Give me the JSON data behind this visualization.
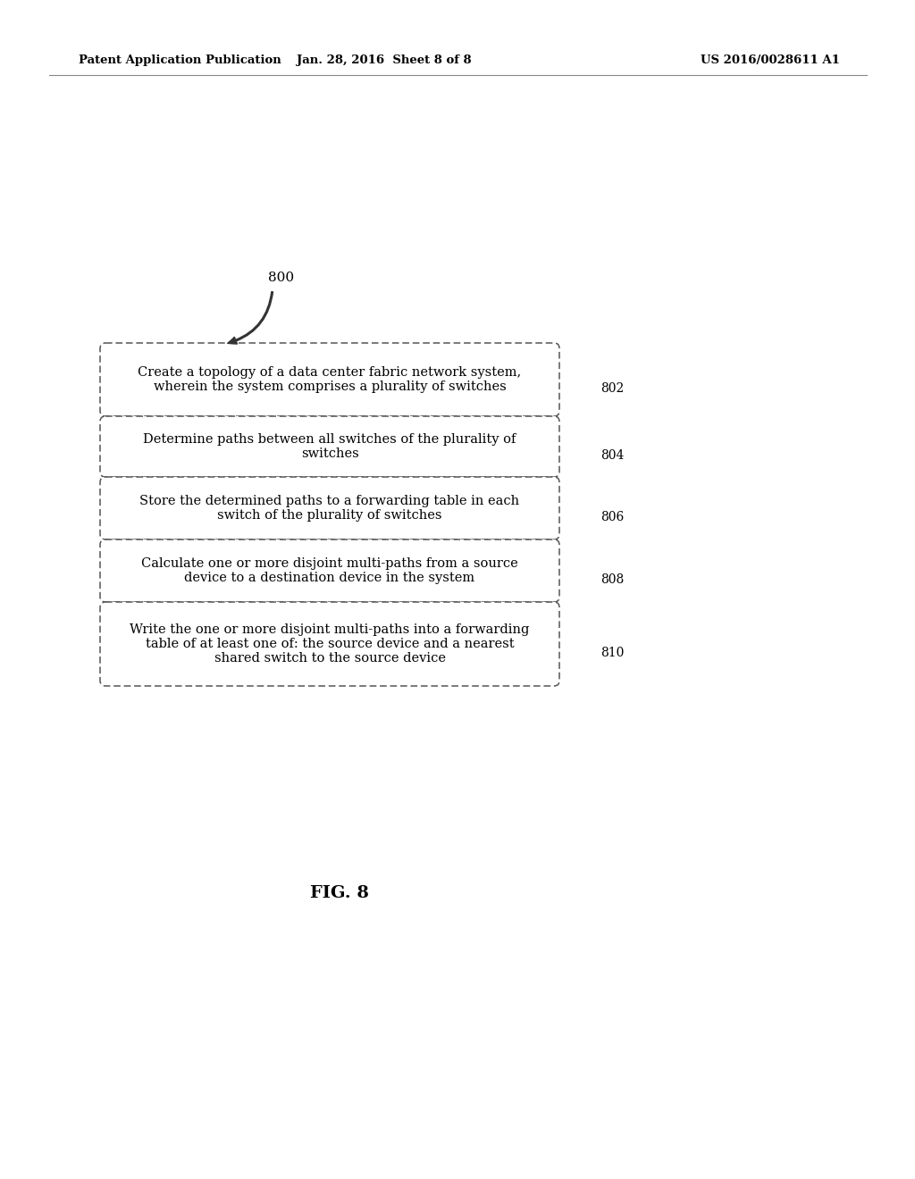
{
  "bg_color": "#ffffff",
  "header_left": "Patent Application Publication",
  "header_mid": "Jan. 28, 2016  Sheet 8 of 8",
  "header_right": "US 2016/0028611 A1",
  "fig_label": "FIG. 8",
  "diagram_label": "800",
  "boxes": [
    {
      "label": "Create a topology of a data center fabric network system,\nwherein the system comprises a plurality of switches",
      "ref": "802"
    },
    {
      "label": "Determine paths between all switches of the plurality of\nswitches",
      "ref": "804"
    },
    {
      "label": "Store the determined paths to a forwarding table in each\nswitch of the plurality of switches",
      "ref": "806"
    },
    {
      "label": "Calculate one or more disjoint multi-paths from a source\ndevice to a destination device in the system",
      "ref": "808"
    },
    {
      "label": "Write the one or more disjoint multi-paths into a forwarding\ntable of at least one of: the source device and a nearest\nshared switch to the source device",
      "ref": "810"
    }
  ],
  "text_color": "#000000",
  "box_edge_color": "#555555",
  "arrow_color": "#333333",
  "font_family": "DejaVu Serif"
}
